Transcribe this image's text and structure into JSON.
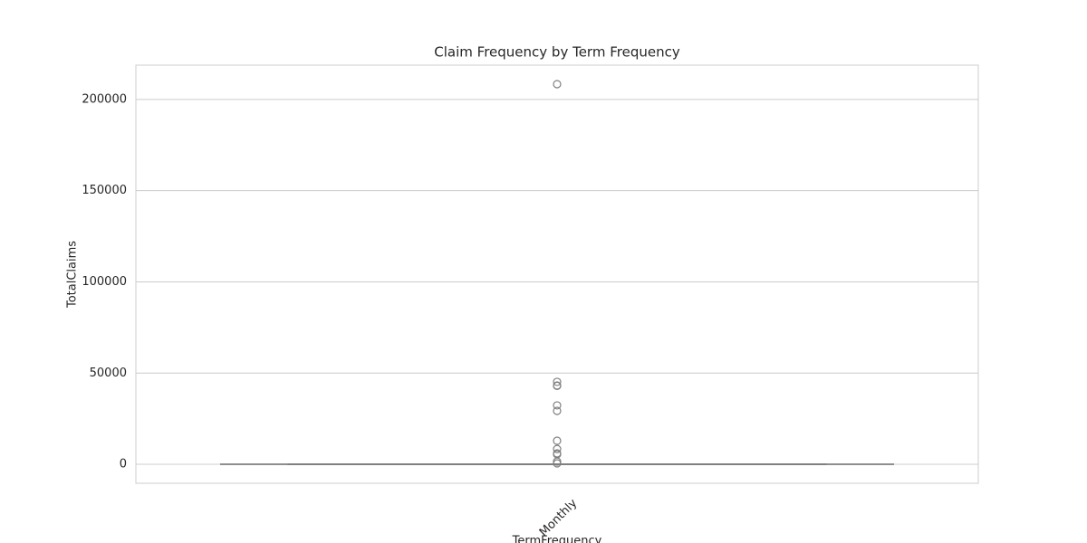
{
  "chart_data": {
    "type": "box",
    "title": "Claim Frequency by Term Frequency",
    "x_label": "TermFrequency",
    "y_label": "TotalClaims",
    "categories": [
      "Monthly"
    ],
    "boxes": [
      {
        "whislo": 0,
        "q1": 0,
        "median": 0,
        "q3": 0,
        "whishi": 0,
        "fliers": [
          208400,
          45200,
          43200,
          43000,
          32300,
          29300,
          12900,
          8400,
          6000,
          5500,
          1500,
          500
        ]
      }
    ],
    "color": "#7f7f7f",
    "ylim": [
      -10400,
      218800
    ],
    "yticks": [
      0,
      50000,
      100000,
      150000,
      200000
    ],
    "grid": true
  }
}
